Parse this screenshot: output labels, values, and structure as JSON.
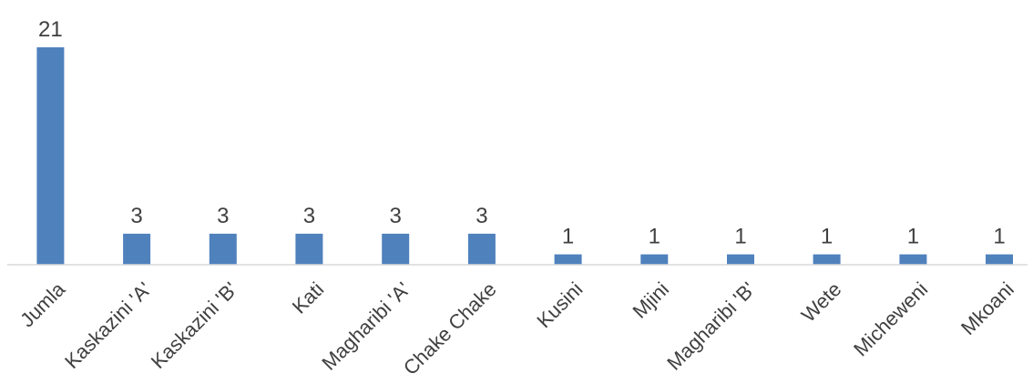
{
  "chart_data": {
    "type": "bar",
    "categories": [
      "Jumla",
      "Kaskazini 'A'",
      "Kaskazini 'B'",
      "Kati",
      "Magharibi 'A'",
      "Chake Chake",
      "Kusini",
      "Mjini",
      "Magharibi 'B'",
      "Wete",
      "Micheweni",
      "Mkoani"
    ],
    "values": [
      21,
      3,
      3,
      3,
      3,
      3,
      1,
      1,
      1,
      1,
      1,
      1
    ],
    "title": "",
    "xlabel": "",
    "ylabel": "",
    "ylim": [
      0,
      21
    ],
    "grid": false,
    "legend": "none",
    "data_labels": true,
    "colors": {
      "bar": "#4f81bd",
      "axis": "#d9d9d9",
      "text": "#404040"
    }
  }
}
